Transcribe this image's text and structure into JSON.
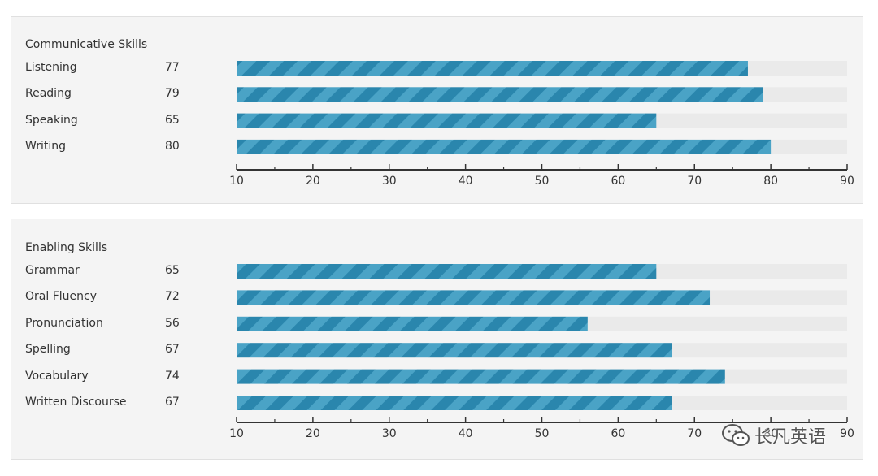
{
  "colors": {
    "bar": "#2a86ad",
    "bar_stripe": "#4aa3c6",
    "track": "#eaeaea",
    "axis": "#333333",
    "panel_bg": "#f4f4f4"
  },
  "watermark": {
    "icon": "wechat-icon",
    "text": "长凡英语"
  },
  "chart_data": [
    {
      "type": "bar",
      "orientation": "horizontal",
      "title": "Communicative Skills",
      "categories": [
        "Listening",
        "Reading",
        "Speaking",
        "Writing"
      ],
      "values": [
        77,
        79,
        65,
        80
      ],
      "xlim": [
        10,
        90
      ],
      "xticks": [
        10,
        20,
        30,
        40,
        50,
        60,
        70,
        80,
        90
      ],
      "xticks_minor": [
        15,
        25,
        35,
        45,
        55,
        65,
        75,
        85
      ],
      "grid": false,
      "legend": "none"
    },
    {
      "type": "bar",
      "orientation": "horizontal",
      "title": "Enabling Skills",
      "categories": [
        "Grammar",
        "Oral Fluency",
        "Pronunciation",
        "Spelling",
        "Vocabulary",
        "Written Discourse"
      ],
      "values": [
        65,
        72,
        56,
        67,
        74,
        67
      ],
      "xlim": [
        10,
        90
      ],
      "xticks": [
        10,
        20,
        30,
        40,
        50,
        60,
        70,
        80,
        90
      ],
      "xticks_minor": [
        15,
        25,
        35,
        45,
        55,
        65,
        75,
        85
      ],
      "grid": false,
      "legend": "none"
    }
  ]
}
